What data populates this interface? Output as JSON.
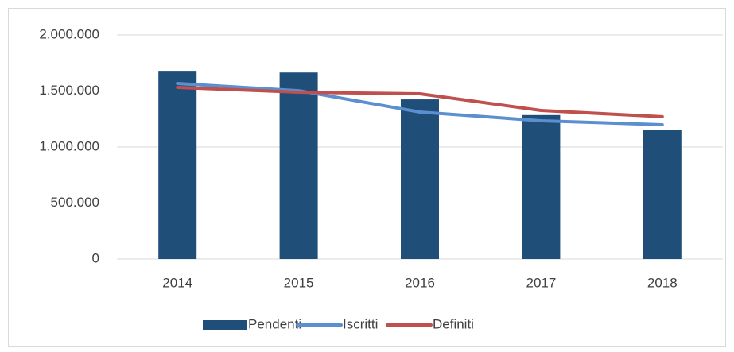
{
  "chart_data": {
    "type": "bar",
    "categories": [
      "2014",
      "2015",
      "2016",
      "2017",
      "2018"
    ],
    "series": [
      {
        "name": "Pendenti",
        "type": "bar",
        "color": "#1f4e79",
        "values": [
          1680000,
          1665000,
          1425000,
          1285000,
          1156000
        ]
      },
      {
        "name": "Iscritti",
        "type": "line",
        "color": "#5b8fd0",
        "values": [
          1567000,
          1503000,
          1312000,
          1234000,
          1199000
        ]
      },
      {
        "name": "Definiti",
        "type": "line",
        "color": "#c0504d",
        "values": [
          1532000,
          1489000,
          1475000,
          1326000,
          1270000
        ]
      }
    ],
    "ylim": [
      0,
      2000000
    ],
    "yticks": [
      0,
      {
        "value": 500000,
        "label": "500.000"
      },
      {
        "value": 1000000,
        "label": "1.000.000"
      },
      {
        "value": 1500000,
        "label": "1.500.000"
      },
      {
        "value": 2000000,
        "label": "2.000.000"
      }
    ],
    "grid": true,
    "legend": "bottom"
  }
}
